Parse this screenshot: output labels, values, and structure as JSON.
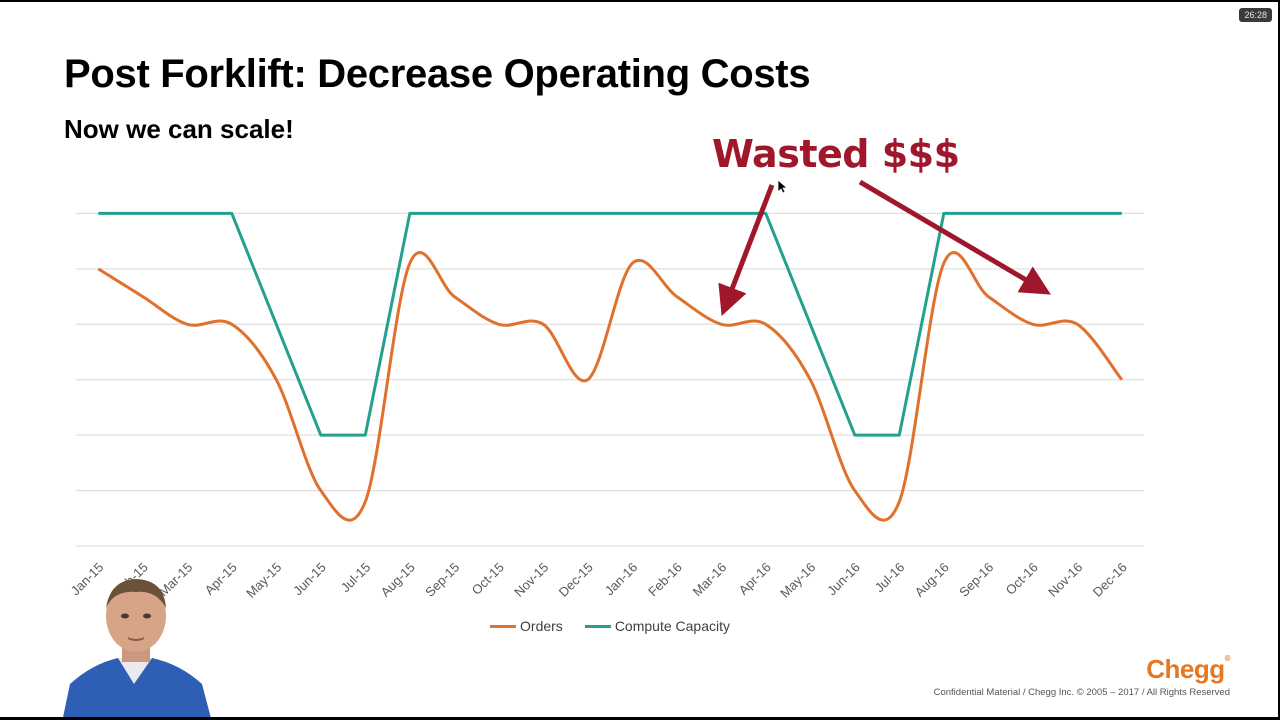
{
  "timer": "26:28",
  "slide": {
    "title": "Post Forklift: Decrease Operating Costs",
    "subtitle": "Now we can scale!",
    "annotation": "Wasted $$$",
    "logo": "Chegg",
    "footer": "Confidential Material / Chegg Inc. © 2005 – 2017 / All Rights Reserved"
  },
  "colors": {
    "orders": "#e0712c",
    "capacity": "#26a08e",
    "annotation": "#a0172c",
    "gridline": "#d9d9d9"
  },
  "chart_data": {
    "type": "line",
    "title": "",
    "xlabel": "",
    "ylabel": "",
    "ylim": [
      0,
      7
    ],
    "grid": true,
    "legend_position": "bottom",
    "categories": [
      "Jan-15",
      "Feb-15",
      "Mar-15",
      "Apr-15",
      "May-15",
      "Jun-15",
      "Jul-15",
      "Aug-15",
      "Sep-15",
      "Oct-15",
      "Nov-15",
      "Dec-15",
      "Jan-16",
      "Feb-16",
      "Mar-16",
      "Apr-16",
      "May-16",
      "Jun-16",
      "Jul-16",
      "Aug-16",
      "Sep-16",
      "Oct-16",
      "Nov-16",
      "Dec-16"
    ],
    "series": [
      {
        "name": "Orders",
        "color": "#e0712c",
        "values": [
          5,
          4.5,
          4,
          4,
          3,
          1,
          0.8,
          5.1,
          4.5,
          4,
          4,
          3,
          5.1,
          4.5,
          4,
          4,
          3,
          1,
          0.8,
          5.1,
          4.5,
          4,
          4,
          3
        ]
      },
      {
        "name": "Compute Capacity",
        "color": "#26a08e",
        "values": [
          6,
          6,
          6,
          6,
          4,
          2,
          2,
          6,
          6,
          6,
          6,
          6,
          6,
          6,
          6,
          6,
          4,
          2,
          2,
          6,
          6,
          6,
          6,
          6
        ]
      }
    ],
    "annotations": [
      {
        "text": "Wasted $$$",
        "points_to": [
          "Mar-16",
          "Oct-16"
        ]
      }
    ]
  }
}
